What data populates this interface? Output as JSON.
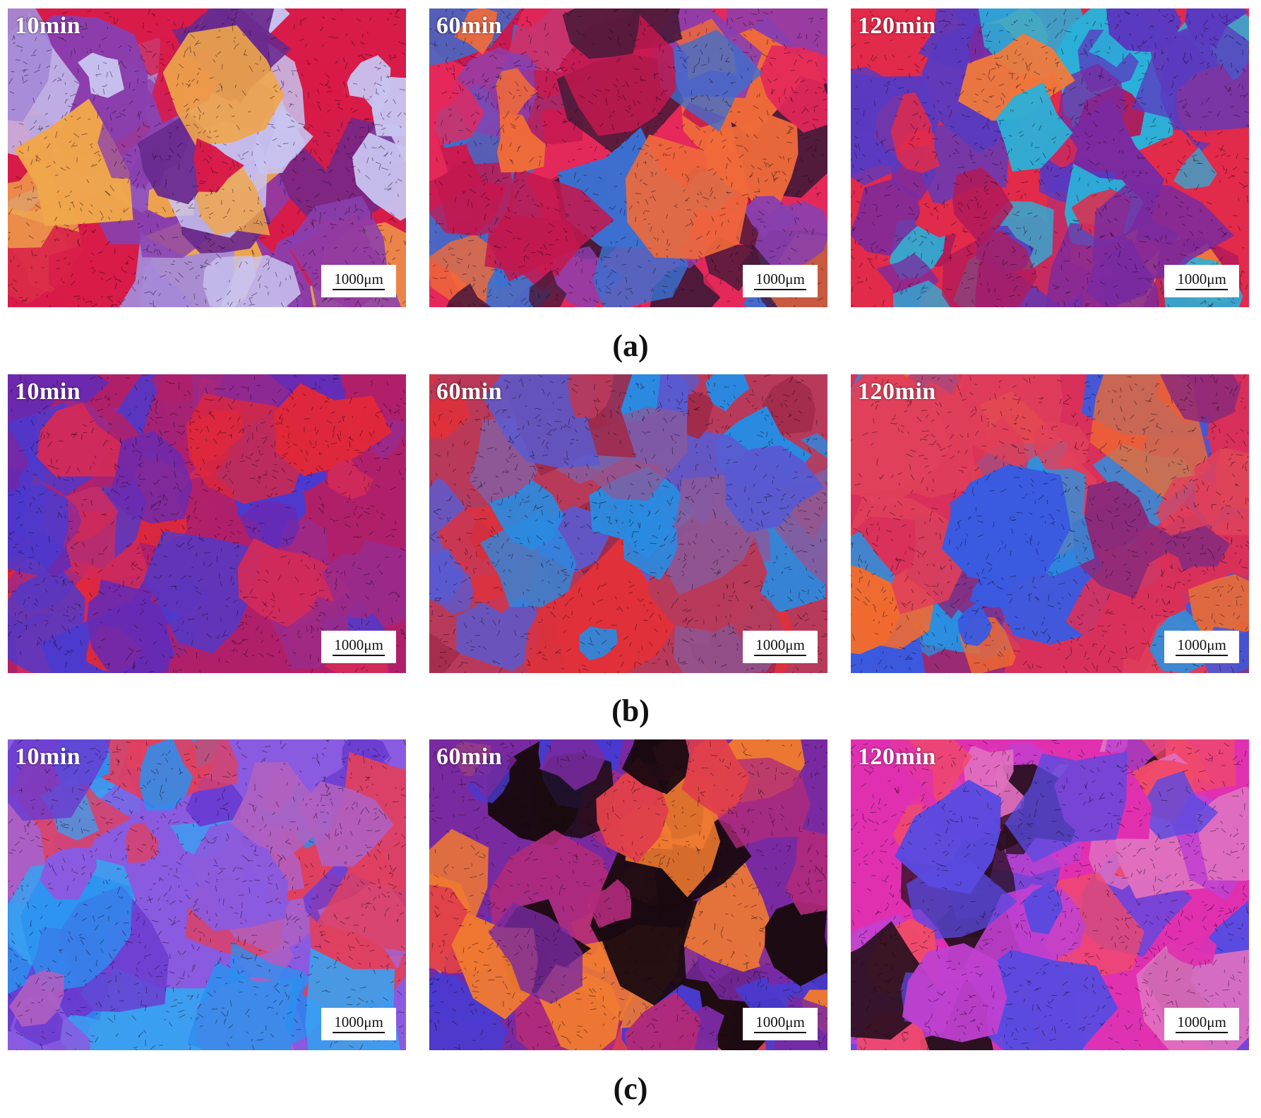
{
  "figure": {
    "rows": [
      {
        "label": "(a)",
        "panels": [
          {
            "time": "10min",
            "scale": "1000μm",
            "colors": [
              "#d81b48",
              "#8a3fae",
              "#a58ad8",
              "#f0a64a",
              "#c8c3f0",
              "#6a2a8e"
            ]
          },
          {
            "time": "60min",
            "scale": "1000μm",
            "colors": [
              "#e5285a",
              "#ef6a3a",
              "#8a3fae",
              "#3c6fd0",
              "#c2184f",
              "#4a1a3a"
            ]
          },
          {
            "time": "120min",
            "scale": "1000μm",
            "colors": [
              "#e22a4a",
              "#7a2aa0",
              "#5a3ac0",
              "#f07a3a",
              "#2ab0d8",
              "#b01a5a"
            ]
          }
        ]
      },
      {
        "label": "(b)",
        "panels": [
          {
            "time": "10min",
            "scale": "1000μm",
            "colors": [
              "#b0206a",
              "#6a2ab0",
              "#e0283a",
              "#4a3ad0",
              "#9a2a8a",
              "#d02a5a"
            ]
          },
          {
            "time": "60min",
            "scale": "1000μm",
            "colors": [
              "#b83a5a",
              "#2a8ae0",
              "#e0303a",
              "#5a5ad0",
              "#a02a4a",
              "#8a5a9a"
            ]
          },
          {
            "time": "120min",
            "scale": "1000μm",
            "colors": [
              "#d8305a",
              "#3a5ae0",
              "#f06a30",
              "#8a2a7a",
              "#e0405a",
              "#2a90e0"
            ]
          }
        ]
      },
      {
        "label": "(c)",
        "panels": [
          {
            "time": "10min",
            "scale": "1000μm",
            "colors": [
              "#8a5ae0",
              "#2a90f0",
              "#e04060",
              "#6a3ad0",
              "#b060c0",
              "#3aa0f0"
            ]
          },
          {
            "time": "60min",
            "scale": "1000μm",
            "colors": [
              "#7a2aa0",
              "#1a0a10",
              "#e0404a",
              "#4a3ad0",
              "#b02a7a",
              "#f07a30"
            ]
          },
          {
            "time": "120min",
            "scale": "1000μm",
            "colors": [
              "#e030b0",
              "#5a4ae0",
              "#f04a6a",
              "#c040d0",
              "#2a1020",
              "#e070c0"
            ]
          }
        ]
      }
    ]
  }
}
